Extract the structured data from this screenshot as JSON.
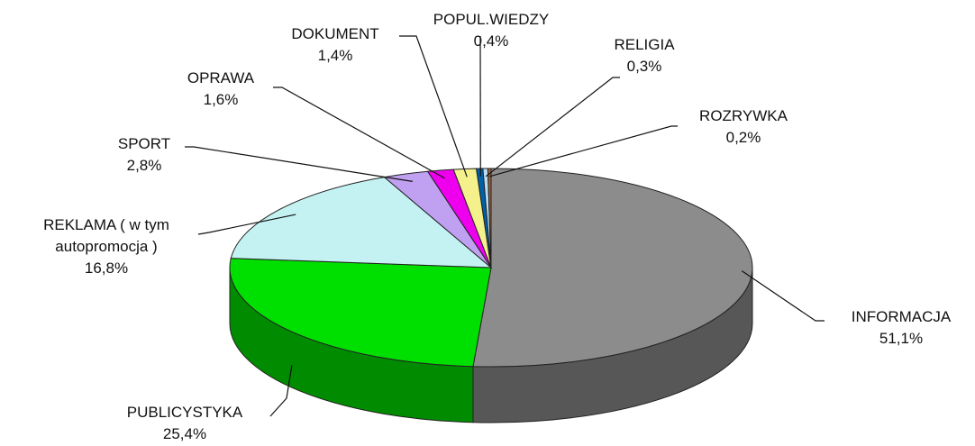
{
  "chart_data": {
    "type": "pie",
    "categories": [
      "INFORMACJA",
      "PUBLICYSTYKA",
      "REKLAMA ( w tym autopromocja )",
      "SPORT",
      "OPRAWA",
      "DOKUMENT",
      "POPUL.WIEDZY",
      "RELIGIA",
      "ROZRYWKA"
    ],
    "values": [
      51.1,
      25.4,
      16.8,
      2.8,
      1.6,
      1.4,
      0.4,
      0.3,
      0.2
    ],
    "value_labels": [
      "51,1%",
      "25,4%",
      "16,8%",
      "2,8%",
      "1,6%",
      "1,4%",
      "0,4%",
      "0,3%",
      "0,2%"
    ],
    "colors": [
      "#8c8c8c",
      "#00e000",
      "#c4f2f2",
      "#c0a0f0",
      "#ee00ee",
      "#f4f08c",
      "#0060a8",
      "#b8dcf0",
      "#a0603c"
    ]
  }
}
